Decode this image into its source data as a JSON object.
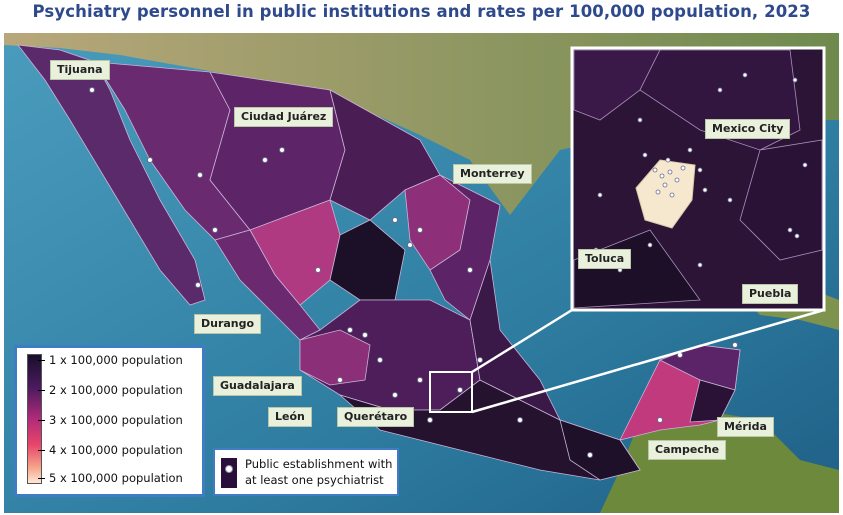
{
  "title": "Psychiatry personnel in public institutions and rates per 100,000 population, 2023",
  "cities": {
    "tijuana": "Tijuana",
    "ciudad_juarez": "Ciudad Juárez",
    "monterrey": "Monterrey",
    "durango": "Durango",
    "guadalajara": "Guadalajara",
    "leon": "León",
    "queretaro": "Querétaro",
    "merida": "Mérida",
    "campeche": "Campeche",
    "mexico_city": "Mexico City",
    "toluca": "Toluca",
    "puebla": "Puebla"
  },
  "legend": {
    "items": [
      "1 x 100,000 population",
      "2 x 100,000 population",
      "3 x 100,000 population",
      "4 x 100,000 population",
      "5 x 100,000 population"
    ],
    "scale_colors": [
      "#180f2a",
      "#4a1a5e",
      "#b02b7a",
      "#e8456a",
      "#fde7d7"
    ],
    "establishment_line1": "Public establishment with",
    "establishment_line2": "at least one psychiatrist"
  },
  "colors": {
    "ocean": "#3a86a8",
    "land_outside": "#8f9a63",
    "accent_border": "#3f7cc3",
    "title": "#2e4a8c"
  }
}
